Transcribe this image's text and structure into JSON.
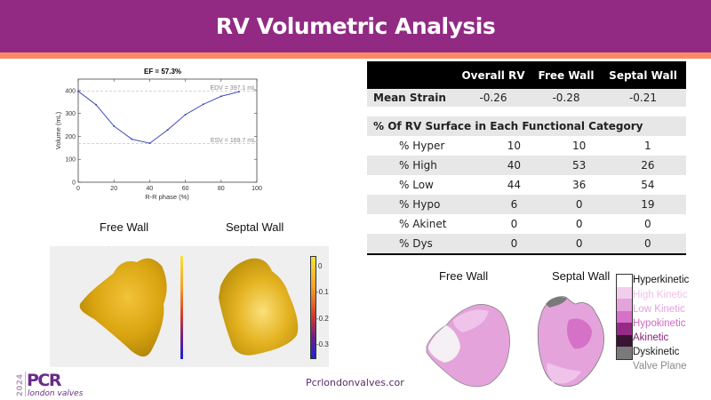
{
  "header": {
    "title": "RV Volumetric Analysis"
  },
  "chart_data": {
    "type": "line",
    "title": "EF = 57.3%",
    "xlabel": "R-R phase (%)",
    "ylabel": "Volume (mL)",
    "xlim": [
      0,
      100
    ],
    "ylim": [
      0,
      450
    ],
    "xticks": [
      0,
      20,
      40,
      60,
      80,
      100
    ],
    "yticks": [
      0,
      100,
      200,
      300,
      400
    ],
    "x": [
      0,
      10,
      20,
      30,
      40,
      50,
      60,
      70,
      80,
      90
    ],
    "series": [
      {
        "name": "Volume",
        "values": [
          397,
          338,
          245,
          188,
          170,
          228,
          295,
          340,
          375,
          395
        ],
        "color": "#2b3bb5"
      }
    ],
    "reference_lines": [
      {
        "label": "EDV = 397.1 mL",
        "value": 397.1
      },
      {
        "label": "ESV = 169.7 mL",
        "value": 169.7
      }
    ],
    "grid": false
  },
  "strain_table": {
    "columns": [
      "",
      "Overall RV",
      "Free Wall",
      "Septal Wall"
    ],
    "mean_strain": {
      "label": "Mean Strain",
      "values": [
        "-0.26",
        "-0.28",
        "-0.21"
      ]
    }
  },
  "category_table": {
    "title": "% Of RV Surface in Each Functional Category",
    "rows": [
      {
        "label": "% Hyper",
        "values": [
          "10",
          "10",
          "1"
        ]
      },
      {
        "label": "% High",
        "values": [
          "40",
          "53",
          "26"
        ]
      },
      {
        "label": "% Low",
        "values": [
          "44",
          "36",
          "54"
        ]
      },
      {
        "label": "% Hypo",
        "values": [
          "6",
          "0",
          "19"
        ]
      },
      {
        "label": "% Akinet",
        "values": [
          "0",
          "0",
          "0"
        ]
      },
      {
        "label": "% Dys",
        "values": [
          "0",
          "0",
          "0"
        ]
      }
    ]
  },
  "strain_maps": {
    "free_wall_title": "Free Wall",
    "septal_wall_title": "Septal Wall",
    "colorbar_ticks": [
      "0",
      "-0.1",
      "-0.2",
      "-0.3"
    ]
  },
  "kinetic_maps": {
    "free_wall_title": "Free Wall",
    "septal_wall_title": "Septal Wall",
    "legend": [
      {
        "label": "Hyperkinetic",
        "color": "#ffffff",
        "text_color": "#111111"
      },
      {
        "label": "High Kinetic",
        "color": "#f3cdec",
        "text_color": "#efc2e8"
      },
      {
        "label": "Low Kinetic",
        "color": "#e5a3dc",
        "text_color": "#e2a3da"
      },
      {
        "label": "Hypokinetic",
        "color": "#d671c8",
        "text_color": "#d168c4"
      },
      {
        "label": "Akinetic",
        "color": "#962a86",
        "text_color": "#8a2278"
      },
      {
        "label": "Dyskinetic",
        "color": "#3a1533",
        "text_color": "#1a1a1a"
      },
      {
        "label": "Valve Plane",
        "color": "#7a7a7a",
        "text_color": "#8a8a8a"
      }
    ]
  },
  "footer": {
    "logo_year": "2024",
    "logo_brand": "PCR",
    "logo_sub": "london valves",
    "url": "Pcrlondonvalves.cor"
  }
}
